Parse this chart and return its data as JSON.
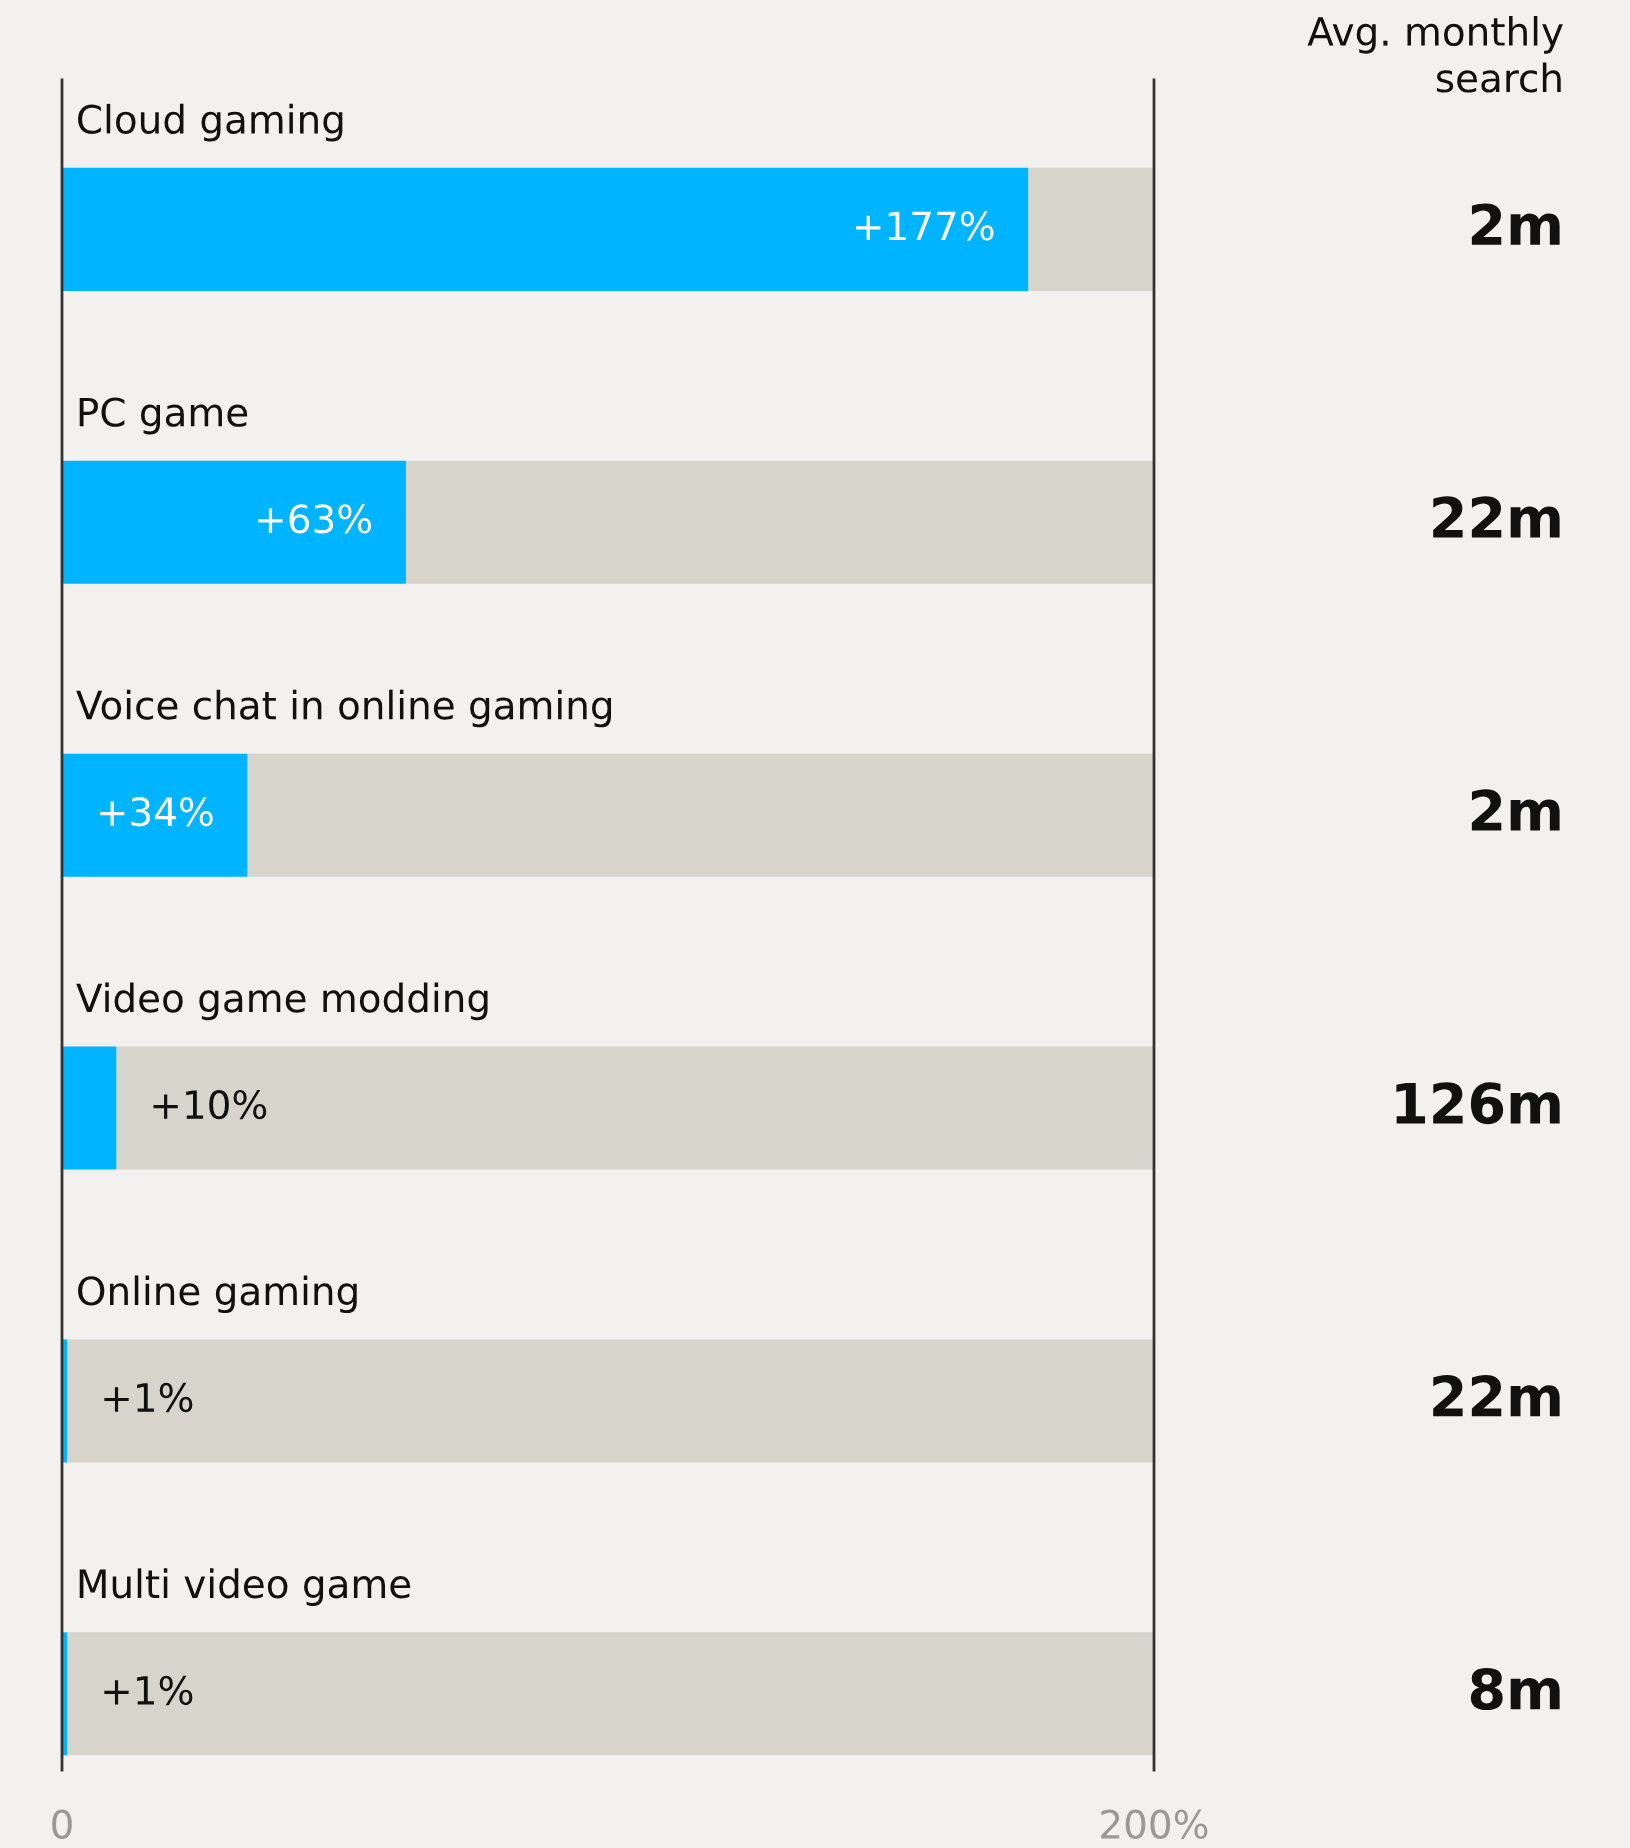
{
  "chart_data": {
    "type": "bar",
    "orientation": "horizontal",
    "stacked": true,
    "categories": [
      "Cloud gaming",
      "PC game",
      "Voice chat in online gaming",
      "Video game modding",
      "Online gaming",
      "Multi video game"
    ],
    "series": [
      {
        "color": "#00b4ff",
        "values": [
          177,
          63,
          34,
          10,
          1,
          1
        ],
        "value_labels": [
          "+177%",
          "+63%",
          "+34%",
          "+10%",
          "+1%",
          "+1%"
        ]
      },
      {
        "color": "#d6d4cb",
        "values": [
          23,
          137,
          166,
          190,
          199,
          199
        ]
      }
    ],
    "xlim": [
      0,
      200
    ],
    "xticks": [
      0,
      {
        "value": 200,
        "label": "200%"
      }
    ],
    "grid": false,
    "legend": false,
    "annotations": [
      "Avg. monthly\nsearch",
      "2m",
      "22m",
      "2m",
      "126m",
      "22m",
      "8m"
    ]
  }
}
